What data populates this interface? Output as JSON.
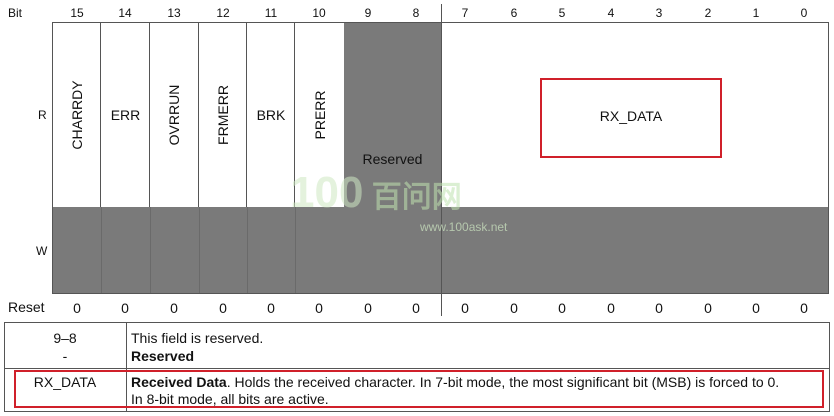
{
  "register": {
    "bit_header_label": "Bit",
    "bit_numbers": [
      "15",
      "14",
      "13",
      "12",
      "11",
      "10",
      "9",
      "8",
      "7",
      "6",
      "5",
      "4",
      "3",
      "2",
      "1",
      "0"
    ],
    "row_labels": {
      "read": "R",
      "write": "W",
      "reset": "Reset"
    },
    "fields": {
      "charrdy": "CHARRDY",
      "err": "ERR",
      "ovrrun": "OVRRUN",
      "frmerr": "FRMERR",
      "brk": "BRK",
      "prerr": "PRERR",
      "reserved": "Reserved",
      "rx_data": "RX_DATA"
    },
    "reset_values": [
      "0",
      "0",
      "0",
      "0",
      "0",
      "0",
      "0",
      "0",
      "0",
      "0",
      "0",
      "0",
      "0",
      "0",
      "0",
      "0"
    ],
    "colors": {
      "gray_fill": "#7a7a7a",
      "highlight": "#d0202a"
    }
  },
  "description_table": {
    "rows": [
      {
        "field": "9–8",
        "field_sub": "-",
        "desc_plain": "This field is reserved.",
        "desc_bold": "Reserved"
      },
      {
        "field": "RX_DATA",
        "desc_bold": "Received Data",
        "desc_rest": ". Holds the received character. In 7-bit mode, the most significant bit (MSB) is forced to 0.",
        "desc_line2": "In 8-bit mode, all bits are active."
      }
    ]
  },
  "watermark": {
    "text": "百问网",
    "subtext": "www.100ask.net"
  }
}
